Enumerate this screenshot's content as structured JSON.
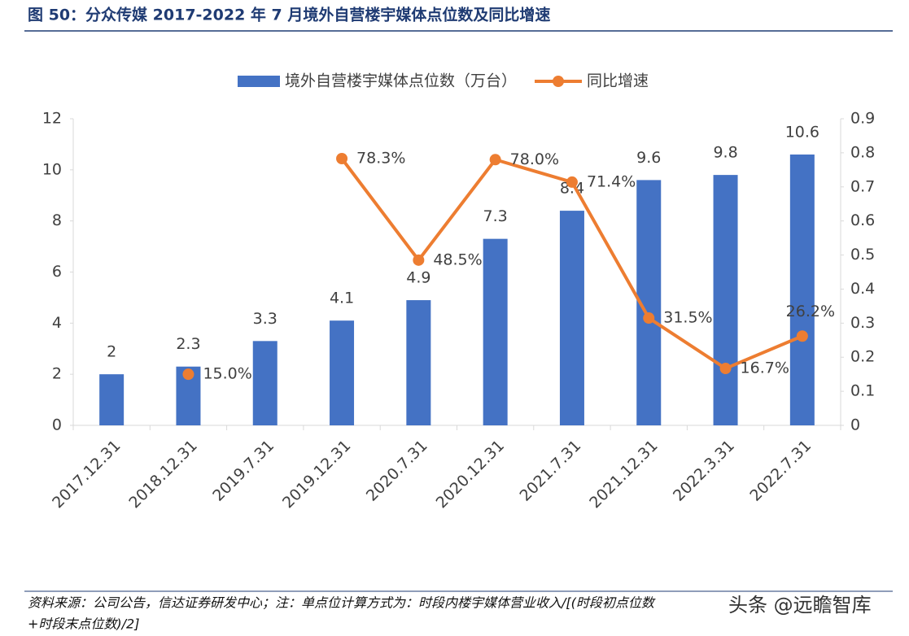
{
  "title": "图 50：分众传媒 2017-2022 年 7 月境外自营楼宇媒体点位数及同比增速",
  "chart_data": {
    "type": "bar",
    "categories": [
      "2017.12.31",
      "2018.12.31",
      "2019.7.31",
      "2019.12.31",
      "2020.7.31",
      "2020.12.31",
      "2021.7.31",
      "2021.12.31",
      "2022.3.31",
      "2022.7.31"
    ],
    "series": [
      {
        "name": "境外自营楼宇媒体点位数（万台）",
        "type": "bar",
        "color": "#4472c4",
        "values": [
          2,
          2.3,
          3.3,
          4.1,
          4.9,
          7.3,
          8.4,
          9.6,
          9.8,
          10.6
        ]
      },
      {
        "name": "同比增速",
        "type": "line",
        "axis": "y2",
        "color": "#ed7d31",
        "values": [
          null,
          0.15,
          null,
          0.783,
          0.485,
          0.78,
          0.714,
          0.315,
          0.167,
          0.262
        ],
        "value_labels": [
          null,
          "15.0%",
          null,
          "78.3%",
          "48.5%",
          "78.0%",
          "71.4%",
          "31.5%",
          "16.7%",
          "26.2%"
        ]
      }
    ],
    "ylim": [
      0,
      12
    ],
    "yticks": [
      0,
      2,
      4,
      6,
      8,
      10,
      12
    ],
    "y2lim": [
      0,
      0.9
    ],
    "y2ticks": [
      0,
      0.1,
      0.2,
      0.3,
      0.4,
      0.5,
      0.6,
      0.7,
      0.8,
      0.9
    ]
  },
  "source": [
    "资料来源：公司公告，信达证券研发中心；注：单点位计算方式为：时段内楼宇媒体营业收入/[(时段初点位数",
    "+时段末点位数)/2]"
  ],
  "watermark": "头条 @远瞻智库"
}
